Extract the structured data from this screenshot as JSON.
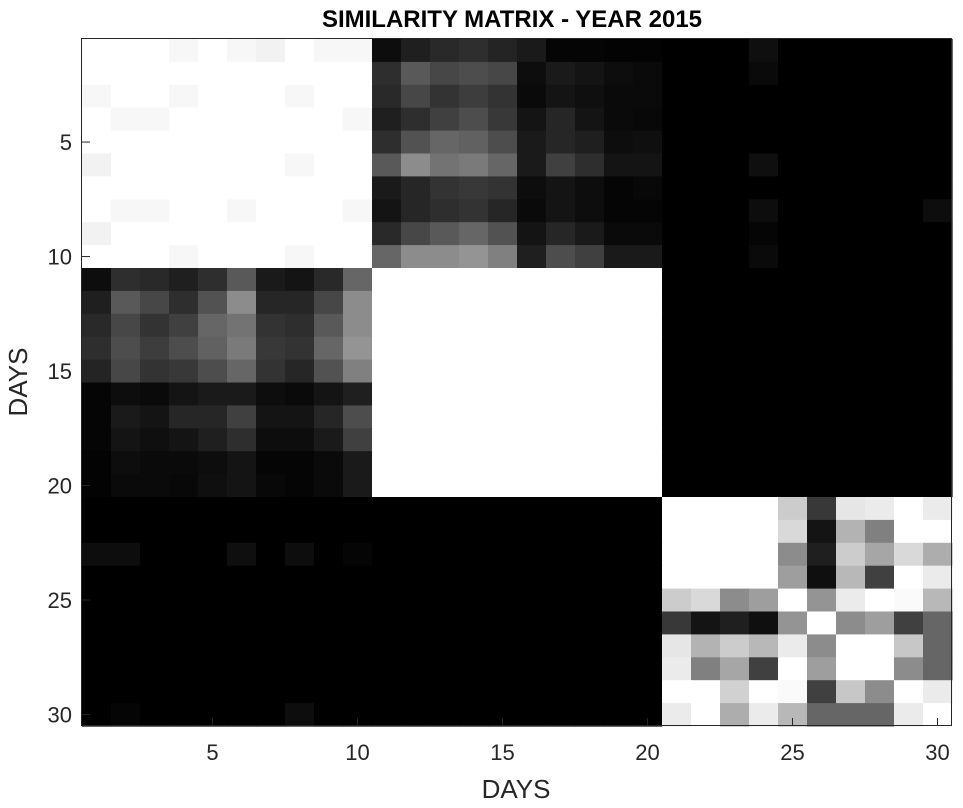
{
  "chart_data": {
    "type": "heatmap",
    "title": "SIMILARITY MATRIX - YEAR 2015",
    "xlabel": "DAYS",
    "ylabel": "DAYS",
    "xlim": [
      0.5,
      30.5
    ],
    "ylim": [
      0.5,
      30.5
    ],
    "x_ticks": [
      5,
      10,
      15,
      20,
      25,
      30
    ],
    "y_ticks": [
      5,
      10,
      15,
      20,
      25,
      30
    ],
    "y_reversed": true,
    "colormap": "gray",
    "value_range": [
      0,
      1
    ],
    "grid": false,
    "legend": "none",
    "rows": 30,
    "cols": 30,
    "values": [
      [
        1,
        1,
        1,
        0.97,
        1,
        0.97,
        0.95,
        1,
        0.97,
        0.97,
        0.05,
        0.12,
        0.16,
        0.18,
        0.14,
        0.1,
        0.02,
        0.02,
        0.01,
        0.01,
        0,
        0,
        0,
        0.06,
        0,
        0,
        0,
        0,
        0,
        0
      ],
      [
        1,
        1,
        1,
        1,
        1,
        1,
        1,
        1,
        1,
        1,
        0.18,
        0.35,
        0.28,
        0.3,
        0.28,
        0.05,
        0.1,
        0.08,
        0.05,
        0.04,
        0,
        0,
        0,
        0.04,
        0,
        0,
        0,
        0,
        0,
        0
      ],
      [
        0.97,
        1,
        1,
        0.97,
        1,
        1,
        1,
        0.97,
        1,
        1,
        0.16,
        0.28,
        0.2,
        0.24,
        0.2,
        0.04,
        0.08,
        0.06,
        0.04,
        0.04,
        0,
        0,
        0,
        0,
        0,
        0,
        0,
        0,
        0,
        0
      ],
      [
        1,
        0.97,
        0.97,
        1,
        1,
        1,
        1,
        1,
        1,
        0.97,
        0.12,
        0.18,
        0.25,
        0.3,
        0.22,
        0.08,
        0.15,
        0.08,
        0.04,
        0.03,
        0,
        0,
        0,
        0,
        0,
        0,
        0,
        0,
        0,
        0
      ],
      [
        1,
        1,
        1,
        1,
        1,
        1,
        1,
        1,
        1,
        1,
        0.18,
        0.32,
        0.4,
        0.38,
        0.3,
        0.1,
        0.15,
        0.12,
        0.05,
        0.06,
        0,
        0,
        0,
        0,
        0,
        0,
        0,
        0,
        0,
        0
      ],
      [
        0.95,
        1,
        1,
        1,
        1,
        1,
        1,
        0.97,
        1,
        1,
        0.35,
        0.55,
        0.45,
        0.48,
        0.4,
        0.1,
        0.25,
        0.18,
        0.08,
        0.08,
        0,
        0,
        0,
        0.06,
        0,
        0,
        0,
        0,
        0,
        0
      ],
      [
        1,
        1,
        1,
        1,
        1,
        1,
        1,
        1,
        1,
        1,
        0.1,
        0.15,
        0.2,
        0.22,
        0.2,
        0.05,
        0.08,
        0.05,
        0.02,
        0.03,
        0,
        0,
        0,
        0,
        0,
        0,
        0,
        0,
        0,
        0
      ],
      [
        1,
        0.97,
        0.97,
        1,
        1,
        0.97,
        1,
        1,
        1,
        0.97,
        0.08,
        0.15,
        0.18,
        0.2,
        0.15,
        0.04,
        0.08,
        0.05,
        0.02,
        0.02,
        0,
        0,
        0,
        0.05,
        0,
        0,
        0,
        0,
        0,
        0.05
      ],
      [
        0.95,
        1,
        1,
        1,
        1,
        1,
        1,
        1,
        1,
        1,
        0.16,
        0.28,
        0.35,
        0.4,
        0.32,
        0.08,
        0.15,
        0.1,
        0.04,
        0.04,
        0,
        0,
        0,
        0.02,
        0,
        0,
        0,
        0,
        0,
        0
      ],
      [
        1,
        1,
        1,
        0.97,
        1,
        1,
        1,
        0.97,
        1,
        1,
        0.4,
        0.55,
        0.55,
        0.58,
        0.5,
        0.12,
        0.3,
        0.25,
        0.1,
        0.1,
        0,
        0,
        0,
        0.04,
        0,
        0,
        0,
        0,
        0,
        0
      ],
      [
        0.05,
        0.18,
        0.16,
        0.12,
        0.18,
        0.35,
        0.1,
        0.08,
        0.16,
        0.4,
        1,
        1,
        1,
        1,
        1,
        1,
        1,
        1,
        1,
        1,
        0,
        0,
        0,
        0,
        0,
        0,
        0,
        0,
        0,
        0
      ],
      [
        0.12,
        0.35,
        0.28,
        0.18,
        0.32,
        0.55,
        0.15,
        0.15,
        0.28,
        0.55,
        1,
        1,
        1,
        1,
        1,
        1,
        1,
        1,
        1,
        1,
        0,
        0,
        0,
        0,
        0,
        0,
        0,
        0,
        0,
        0
      ],
      [
        0.16,
        0.28,
        0.2,
        0.25,
        0.4,
        0.45,
        0.2,
        0.18,
        0.35,
        0.55,
        1,
        1,
        1,
        1,
        1,
        1,
        1,
        1,
        1,
        1,
        0,
        0,
        0,
        0,
        0,
        0,
        0,
        0,
        0,
        0
      ],
      [
        0.18,
        0.3,
        0.24,
        0.3,
        0.38,
        0.48,
        0.22,
        0.2,
        0.4,
        0.58,
        1,
        1,
        1,
        1,
        1,
        1,
        1,
        1,
        1,
        1,
        0,
        0,
        0,
        0,
        0,
        0,
        0,
        0,
        0,
        0
      ],
      [
        0.14,
        0.28,
        0.2,
        0.22,
        0.3,
        0.4,
        0.2,
        0.15,
        0.32,
        0.5,
        1,
        1,
        1,
        1,
        1,
        1,
        1,
        1,
        1,
        1,
        0,
        0,
        0,
        0,
        0,
        0,
        0,
        0,
        0,
        0
      ],
      [
        0.02,
        0.05,
        0.04,
        0.08,
        0.1,
        0.1,
        0.05,
        0.04,
        0.08,
        0.12,
        1,
        1,
        1,
        1,
        1,
        1,
        1,
        1,
        1,
        1,
        0,
        0,
        0,
        0,
        0,
        0,
        0,
        0,
        0,
        0
      ],
      [
        0.02,
        0.1,
        0.08,
        0.15,
        0.15,
        0.25,
        0.08,
        0.08,
        0.15,
        0.3,
        1,
        1,
        1,
        1,
        1,
        1,
        1,
        1,
        1,
        1,
        0,
        0,
        0,
        0,
        0,
        0,
        0,
        0,
        0,
        0
      ],
      [
        0.02,
        0.08,
        0.06,
        0.08,
        0.12,
        0.18,
        0.05,
        0.05,
        0.1,
        0.25,
        1,
        1,
        1,
        1,
        1,
        1,
        1,
        1,
        1,
        1,
        0,
        0,
        0,
        0,
        0,
        0,
        0,
        0,
        0,
        0
      ],
      [
        0.01,
        0.05,
        0.04,
        0.04,
        0.05,
        0.08,
        0.02,
        0.02,
        0.04,
        0.1,
        1,
        1,
        1,
        1,
        1,
        1,
        1,
        1,
        1,
        1,
        0,
        0,
        0,
        0,
        0,
        0,
        0,
        0,
        0,
        0
      ],
      [
        0.01,
        0.04,
        0.04,
        0.03,
        0.06,
        0.08,
        0.03,
        0.02,
        0.04,
        0.1,
        1,
        1,
        1,
        1,
        1,
        1,
        1,
        1,
        1,
        1,
        0,
        0,
        0,
        0,
        0,
        0,
        0,
        0,
        0,
        0
      ],
      [
        0,
        0,
        0,
        0,
        0,
        0,
        0,
        0,
        0,
        0,
        0,
        0,
        0,
        0,
        0,
        0,
        0,
        0,
        0,
        0,
        1,
        1,
        1,
        1,
        0.8,
        0.22,
        0.9,
        0.92,
        1,
        0.92
      ],
      [
        0,
        0,
        0,
        0,
        0,
        0,
        0,
        0,
        0,
        0,
        0,
        0,
        0,
        0,
        0,
        0,
        0,
        0,
        0,
        0,
        1,
        1,
        1,
        1,
        0.85,
        0.08,
        0.7,
        0.5,
        1,
        1
      ],
      [
        0.05,
        0.05,
        0,
        0,
        0,
        0.06,
        0,
        0.05,
        0,
        0.02,
        0,
        0,
        0,
        0,
        0,
        0,
        0,
        0,
        0,
        0,
        1,
        1,
        1,
        1,
        0.55,
        0.12,
        0.8,
        0.65,
        0.85,
        0.68
      ],
      [
        0,
        0,
        0,
        0,
        0,
        0,
        0,
        0,
        0,
        0,
        0,
        0,
        0,
        0,
        0,
        0,
        0,
        0,
        0,
        0,
        1,
        1,
        1,
        1,
        0.62,
        0.06,
        0.72,
        0.25,
        1,
        0.92
      ],
      [
        0,
        0,
        0,
        0,
        0,
        0,
        0,
        0,
        0,
        0,
        0,
        0,
        0,
        0,
        0,
        0,
        0,
        0,
        0,
        0,
        0.8,
        0.85,
        0.55,
        0.62,
        1,
        0.58,
        0.92,
        1,
        0.98,
        0.72
      ],
      [
        0,
        0,
        0,
        0,
        0,
        0,
        0,
        0,
        0,
        0,
        0,
        0,
        0,
        0,
        0,
        0,
        0,
        0,
        0,
        0,
        0.22,
        0.08,
        0.12,
        0.06,
        0.58,
        1,
        0.55,
        0.62,
        0.25,
        0.4
      ],
      [
        0,
        0,
        0,
        0,
        0,
        0,
        0,
        0,
        0,
        0,
        0,
        0,
        0,
        0,
        0,
        0,
        0,
        0,
        0,
        0,
        0.9,
        0.7,
        0.8,
        0.72,
        0.92,
        0.55,
        1,
        1,
        0.78,
        0.4
      ],
      [
        0,
        0,
        0,
        0,
        0,
        0,
        0,
        0,
        0,
        0,
        0,
        0,
        0,
        0,
        0,
        0,
        0,
        0,
        0,
        0,
        0.92,
        0.5,
        0.65,
        0.25,
        1,
        0.62,
        1,
        1,
        0.55,
        0.4
      ],
      [
        0,
        0,
        0,
        0,
        0,
        0,
        0,
        0,
        0,
        0,
        0,
        0,
        0,
        0,
        0,
        0,
        0,
        0,
        0,
        0,
        1,
        1,
        0.82,
        1,
        0.98,
        0.25,
        0.78,
        0.55,
        1,
        0.92
      ],
      [
        0,
        0.02,
        0,
        0,
        0,
        0,
        0,
        0.05,
        0,
        0,
        0,
        0,
        0,
        0,
        0,
        0,
        0,
        0,
        0,
        0,
        0.92,
        1,
        0.68,
        0.92,
        0.72,
        0.4,
        0.4,
        0.4,
        0.92,
        1
      ]
    ]
  }
}
